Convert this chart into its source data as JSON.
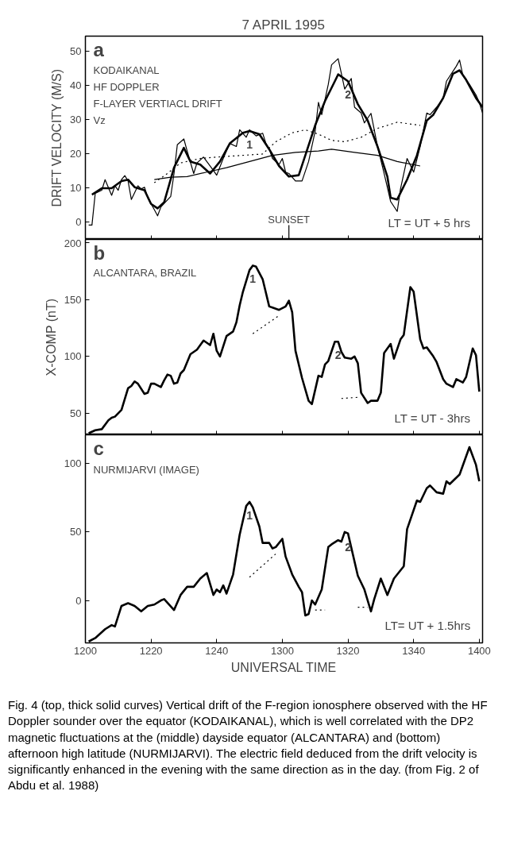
{
  "chart_data": [
    {
      "type": "line",
      "title": "7 APRIL 1995",
      "ylabel": "DRIFT VELOCITY (M/S)",
      "xlim": [
        "1995-04-07T12:00",
        "1995-04-07T14:01"
      ],
      "ylim": [
        -5.2,
        54.3
      ],
      "yticks": [
        0,
        10,
        20,
        30,
        40,
        50
      ],
      "xticks": [
        "1995-04-07T12:00",
        "1995-04-07T12:20",
        "1995-04-07T12:40",
        "1995-04-07T13:00",
        "1995-04-07T13:20",
        "1995-04-07T13:40",
        "1995-04-07T14:00"
      ],
      "tick_labels": "y",
      "grid": false,
      "marker": "none",
      "line_style": "solid",
      "series": [
        {
          "color": "#000000",
          "x": [
            "1995-04-07T12:02",
            "1995-04-07T12:05",
            "1995-04-07T12:08",
            "1995-04-07T12:11",
            "1995-04-07T12:13",
            "1995-04-07T12:15",
            "1995-04-07T12:18",
            "1995-04-07T12:20",
            "1995-04-07T12:22",
            "1995-04-07T12:24",
            "1995-04-07T12:27",
            "1995-04-07T12:30",
            "1995-04-07T12:32",
            "1995-04-07T12:35",
            "1995-04-07T12:38",
            "1995-04-07T12:41",
            "1995-04-07T12:44",
            "1995-04-07T12:48",
            "1995-04-07T12:50",
            "1995-04-07T12:53",
            "1995-04-07T12:56",
            "1995-04-07T12:59",
            "1995-04-07T13:02",
            "1995-04-07T13:05",
            "1995-04-07T13:07",
            "1995-04-07T13:10",
            "1995-04-07T13:13",
            "1995-04-07T13:16",
            "1995-04-07T13:17",
            "1995-04-07T13:20",
            "1995-04-07T13:23",
            "1995-04-07T13:26",
            "1995-04-07T13:29",
            "1995-04-07T13:32",
            "1995-04-07T13:33",
            "1995-04-07T13:35",
            "1995-04-07T13:38",
            "1995-04-07T13:41",
            "1995-04-07T13:44",
            "1995-04-07T13:46",
            "1995-04-07T13:49",
            "1995-04-07T13:52",
            "1995-04-07T13:54",
            "1995-04-07T13:56",
            "1995-04-07T13:59",
            "1995-04-07T14:01"
          ],
          "values": [
            7.9,
            9.8,
            9.8,
            11.9,
            12.3,
            10.1,
            9.2,
            5.2,
            3.9,
            5.7,
            15.8,
            21.6,
            17.6,
            16.7,
            14.1,
            17.6,
            22.9,
            26.0,
            26.5,
            25.6,
            21.2,
            16.3,
            13.2,
            13.6,
            19.4,
            28.2,
            35.3,
            41.1,
            43.1,
            41.1,
            34.4,
            29.6,
            22.0,
            13.2,
            7.0,
            6.5,
            12.3,
            19.4,
            29.6,
            31.3,
            36.2,
            43.3,
            44.3,
            41.5,
            36.2,
            33.5
          ]
        },
        {
          "color": "#000000",
          "x": [
            "1995-04-07T12:01",
            "1995-04-07T12:02",
            "1995-04-07T12:03",
            "1995-04-07T12:05",
            "1995-04-07T12:06",
            "1995-04-07T12:08",
            "1995-04-07T12:09",
            "1995-04-07T12:10",
            "1995-04-07T12:11",
            "1995-04-07T12:12",
            "1995-04-07T12:13",
            "1995-04-07T12:14",
            "1995-04-07T12:16",
            "1995-04-07T12:17",
            "1995-04-07T12:18",
            "1995-04-07T12:19",
            "1995-04-07T12:21",
            "1995-04-07T12:22",
            "1995-04-07T12:23",
            "1995-04-07T12:26",
            "1995-04-07T12:27",
            "1995-04-07T12:28",
            "1995-04-07T12:30",
            "1995-04-07T12:31",
            "1995-04-07T12:33",
            "1995-04-07T12:34",
            "1995-04-07T12:36",
            "1995-04-07T12:39",
            "1995-04-07T12:40",
            "1995-04-07T12:42",
            "1995-04-07T12:44",
            "1995-04-07T12:46",
            "1995-04-07T12:47",
            "1995-04-07T12:49",
            "1995-04-07T12:50",
            "1995-04-07T12:52",
            "1995-04-07T12:54",
            "1995-04-07T12:55",
            "1995-04-07T12:56",
            "1995-04-07T12:57",
            "1995-04-07T12:59",
            "1995-04-07T13:00",
            "1995-04-07T13:01",
            "1995-04-07T13:02",
            "1995-04-07T13:04",
            "1995-04-07T13:06",
            "1995-04-07T13:08",
            "1995-04-07T13:10",
            "1995-04-07T13:11",
            "1995-04-07T13:12",
            "1995-04-07T13:14",
            "1995-04-07T13:15",
            "1995-04-07T13:17",
            "1995-04-07T13:18",
            "1995-04-07T13:19",
            "1995-04-07T13:21",
            "1995-04-07T13:22",
            "1995-04-07T13:24",
            "1995-04-07T13:25",
            "1995-04-07T13:27",
            "1995-04-07T13:29",
            "1995-04-07T13:31",
            "1995-04-07T13:33",
            "1995-04-07T13:35",
            "1995-04-07T13:36",
            "1995-04-07T13:38",
            "1995-04-07T13:40",
            "1995-04-07T13:42",
            "1995-04-07T13:44",
            "1995-04-07T13:45",
            "1995-04-07T13:47",
            "1995-04-07T13:49",
            "1995-04-07T13:50",
            "1995-04-07T13:53",
            "1995-04-07T13:54",
            "1995-04-07T13:55",
            "1995-04-07T13:57",
            "1995-04-07T13:59",
            "1995-04-07T14:00",
            "1995-04-07T14:01"
          ],
          "values": [
            -1.0,
            -1.0,
            8.3,
            9.2,
            12.3,
            7.7,
            10.5,
            9.2,
            12.3,
            13.5,
            11.9,
            6.5,
            10.5,
            9.6,
            10.1,
            7.0,
            3.5,
            1.7,
            4.3,
            7.4,
            14.1,
            22.5,
            24.2,
            20.7,
            14.1,
            17.2,
            18.9,
            15.0,
            13.6,
            18.5,
            22.9,
            22.0,
            26.9,
            24.7,
            26.9,
            25.1,
            25.9,
            22.9,
            21.2,
            18.5,
            16.7,
            18.5,
            14.5,
            14.1,
            11.9,
            11.9,
            17.6,
            26.5,
            34.9,
            31.3,
            40.2,
            45.9,
            47.7,
            43.3,
            38.8,
            41.9,
            33.5,
            31.8,
            28.9,
            31.7,
            22.0,
            14.1,
            5.9,
            3.0,
            9.6,
            18.5,
            14.5,
            22.0,
            31.8,
            31.3,
            33.5,
            36.2,
            41.1,
            45.5,
            47.3,
            42.8,
            40.2,
            37.1,
            34.9,
            31.8
          ]
        },
        {
          "color": "#000000",
          "line_style": "dotted",
          "x": [
            "1995-04-07T12:21",
            "1995-04-07T12:25",
            "1995-04-07T12:29",
            "1995-04-07T12:35",
            "1995-04-07T12:40",
            "1995-04-07T12:54",
            "1995-04-07T12:58",
            "1995-04-07T13:03",
            "1995-04-07T13:07",
            "1995-04-07T13:11",
            "1995-04-07T13:15",
            "1995-04-07T13:19",
            "1995-04-07T13:24",
            "1995-04-07T13:29",
            "1995-04-07T13:35",
            "1995-04-07T13:42"
          ],
          "values": [
            11.4,
            14.1,
            17.2,
            18.5,
            18.9,
            19.8,
            23.4,
            26.0,
            26.9,
            25.6,
            23.8,
            23.4,
            24.7,
            27.3,
            29.1,
            28.2
          ]
        },
        {
          "color": "#000000",
          "x": [
            "1995-04-07T12:21",
            "1995-04-07T12:26",
            "1995-04-07T12:31",
            "1995-04-07T12:37",
            "1995-04-07T12:43",
            "1995-04-07T12:50",
            "1995-04-07T12:57",
            "1995-04-07T13:04",
            "1995-04-07T13:11",
            "1995-04-07T13:15",
            "1995-04-07T13:22",
            "1995-04-07T13:29",
            "1995-04-07T13:35",
            "1995-04-07T13:42"
          ],
          "values": [
            12.3,
            13.0,
            13.2,
            14.5,
            15.8,
            17.6,
            19.4,
            20.3,
            20.7,
            21.2,
            20.3,
            19.4,
            17.6,
            16.3
          ]
        }
      ],
      "ref_lines": [
        {
          "axis": "x",
          "value": "1995-04-07T13:02",
          "label": "SUNSET"
        }
      ],
      "annotations": [
        "a",
        "KODAIKANAL",
        "HF DOPPLER",
        "F-LAYER VERTIACL DRIFT",
        "Vz",
        "LT = UT + 5 hrs",
        {
          "text": "1",
          "x": "1995-04-07T12:50",
          "y": 26.5
        },
        {
          "text": "2",
          "x": "1995-04-07T13:20",
          "y": 41.1
        }
      ]
    },
    {
      "type": "line",
      "ylabel": "X-COMP (nT)",
      "xlim": [
        "1995-04-07T12:00",
        "1995-04-07T14:01"
      ],
      "ylim": [
        31,
        203
      ],
      "yticks": [
        50,
        100,
        150,
        200
      ],
      "xticks": [
        "1995-04-07T12:00",
        "1995-04-07T12:20",
        "1995-04-07T12:40",
        "1995-04-07T13:00",
        "1995-04-07T13:20",
        "1995-04-07T13:40",
        "1995-04-07T14:00"
      ],
      "tick_labels": "y",
      "grid": false,
      "marker": "none",
      "line_style": "solid",
      "series": [
        {
          "color": "#000000",
          "x": [
            "1995-04-07T12:01",
            "1995-04-07T12:03",
            "1995-04-07T12:05",
            "1995-04-07T12:07",
            "1995-04-07T12:08",
            "1995-04-07T12:09",
            "1995-04-07T12:11",
            "1995-04-07T12:13",
            "1995-04-07T12:14",
            "1995-04-07T12:15",
            "1995-04-07T12:16",
            "1995-04-07T12:18",
            "1995-04-07T12:19",
            "1995-04-07T12:20",
            "1995-04-07T12:21",
            "1995-04-07T12:23",
            "1995-04-07T12:24",
            "1995-04-07T12:25",
            "1995-04-07T12:26",
            "1995-04-07T12:27",
            "1995-04-07T12:28",
            "1995-04-07T12:29",
            "1995-04-07T12:30",
            "1995-04-07T12:32",
            "1995-04-07T12:34",
            "1995-04-07T12:36",
            "1995-04-07T12:38",
            "1995-04-07T12:39",
            "1995-04-07T12:40",
            "1995-04-07T12:41",
            "1995-04-07T12:43",
            "1995-04-07T12:45",
            "1995-04-07T12:46",
            "1995-04-07T12:47",
            "1995-04-07T12:48",
            "1995-04-07T12:50",
            "1995-04-07T12:51",
            "1995-04-07T12:52",
            "1995-04-07T12:54",
            "1995-04-07T12:56",
            "1995-04-07T12:57",
            "1995-04-07T12:59",
            "1995-04-07T13:01",
            "1995-04-07T13:02",
            "1995-04-07T13:03",
            "1995-04-07T13:04",
            "1995-04-07T13:06",
            "1995-04-07T13:08",
            "1995-04-07T13:09",
            "1995-04-07T13:11",
            "1995-04-07T13:12",
            "1995-04-07T13:13",
            "1995-04-07T13:14",
            "1995-04-07T13:16",
            "1995-04-07T13:17",
            "1995-04-07T13:18",
            "1995-04-07T13:19",
            "1995-04-07T13:21",
            "1995-04-07T13:22",
            "1995-04-07T13:23",
            "1995-04-07T13:24",
            "1995-04-07T13:26",
            "1995-04-07T13:27",
            "1995-04-07T13:29",
            "1995-04-07T13:30",
            "1995-04-07T13:31",
            "1995-04-07T13:33",
            "1995-04-07T13:34",
            "1995-04-07T13:36",
            "1995-04-07T13:37",
            "1995-04-07T13:39",
            "1995-04-07T13:40",
            "1995-04-07T13:42",
            "1995-04-07T13:43",
            "1995-04-07T13:44",
            "1995-04-07T13:46",
            "1995-04-07T13:47",
            "1995-04-07T13:49",
            "1995-04-07T13:50",
            "1995-04-07T13:52",
            "1995-04-07T13:53",
            "1995-04-07T13:55",
            "1995-04-07T13:56",
            "1995-04-07T13:58",
            "1995-04-07T13:59",
            "1995-04-07T14:00"
          ],
          "values": [
            32.4,
            35,
            36,
            43.7,
            46,
            47,
            53,
            72,
            74,
            78,
            76,
            67,
            68,
            76,
            76,
            73,
            79,
            84,
            83,
            76,
            77,
            85,
            88,
            102,
            106,
            114,
            110,
            120,
            105,
            100,
            118,
            122,
            130,
            145,
            157,
            176,
            180,
            179,
            168,
            144,
            143,
            141,
            144,
            149,
            139,
            105,
            81,
            61,
            58,
            83,
            82,
            93,
            96,
            113,
            113,
            104,
            99,
            98,
            100,
            94,
            68,
            59,
            61,
            61,
            68,
            103,
            111,
            98,
            115,
            119,
            161,
            157,
            115,
            107,
            108,
            100,
            95,
            80,
            76,
            73,
            80,
            77,
            82,
            107,
            101,
            69
          ]
        },
        {
          "color": "#000000",
          "line_style": "dotted",
          "x": [
            "1995-04-07T12:51",
            "1995-04-07T12:59",
            null,
            "1995-04-07T13:18",
            "1995-04-07T13:23"
          ],
          "values": [
            120,
            136,
            null,
            63,
            64
          ]
        }
      ],
      "annotations": [
        "b",
        "ALCANTARA, BRAZIL",
        "LT = UT - 3hrs",
        {
          "text": "1",
          "x": "1995-04-07T12:51",
          "y": 180
        },
        {
          "text": "2",
          "x": "1995-04-07T13:17",
          "y": 113
        }
      ]
    },
    {
      "type": "line",
      "xlabel": "UNIVERSAL TIME",
      "xlim": [
        "1995-04-07T12:00",
        "1995-04-07T14:01"
      ],
      "ylim": [
        -31,
        121
      ],
      "yticks": [
        0,
        50,
        100
      ],
      "xticks": [
        {
          "value": "1995-04-07T12:00",
          "label": "1200"
        },
        {
          "value": "1995-04-07T12:20",
          "label": "1220"
        },
        {
          "value": "1995-04-07T12:40",
          "label": "1240"
        },
        {
          "value": "1995-04-07T13:00",
          "label": "1300"
        },
        {
          "value": "1995-04-07T13:20",
          "label": "1320"
        },
        {
          "value": "1995-04-07T13:40",
          "label": "1340"
        },
        {
          "value": "1995-04-07T14:00",
          "label": "1400"
        }
      ],
      "grid": false,
      "marker": "none",
      "line_style": "solid",
      "series": [
        {
          "color": "#000000",
          "x": [
            "1995-04-07T12:01",
            "1995-04-07T12:03",
            "1995-04-07T12:06",
            "1995-04-07T12:08",
            "1995-04-07T12:09",
            "1995-04-07T12:11",
            "1995-04-07T12:13",
            "1995-04-07T12:15",
            "1995-04-07T12:17",
            "1995-04-07T12:19",
            "1995-04-07T12:21",
            "1995-04-07T12:23",
            "1995-04-07T12:24",
            "1995-04-07T12:27",
            "1995-04-07T12:29",
            "1995-04-07T12:31",
            "1995-04-07T12:33",
            "1995-04-07T12:35",
            "1995-04-07T12:37",
            "1995-04-07T12:39",
            "1995-04-07T12:40",
            "1995-04-07T12:41",
            "1995-04-07T12:42",
            "1995-04-07T12:43",
            "1995-04-07T12:45",
            "1995-04-07T12:47",
            "1995-04-07T12:49",
            "1995-04-07T12:50",
            "1995-04-07T12:51",
            "1995-04-07T12:53",
            "1995-04-07T12:54",
            "1995-04-07T12:56",
            "1995-04-07T12:57",
            "1995-04-07T12:58",
            "1995-04-07T13:00",
            "1995-04-07T13:01",
            "1995-04-07T13:03",
            "1995-04-07T13:05",
            "1995-04-07T13:06",
            "1995-04-07T13:07",
            "1995-04-07T13:08",
            "1995-04-07T13:09",
            "1995-04-07T13:10",
            "1995-04-07T13:12",
            "1995-04-07T13:14",
            "1995-04-07T13:15",
            "1995-04-07T13:17",
            "1995-04-07T13:18",
            "1995-04-07T13:19",
            "1995-04-07T13:20",
            "1995-04-07T13:23",
            "1995-04-07T13:25",
            "1995-04-07T13:27",
            "1995-04-07T13:28",
            "1995-04-07T13:30",
            "1995-04-07T13:32",
            "1995-04-07T13:34",
            "1995-04-07T13:37",
            "1995-04-07T13:38",
            "1995-04-07T13:41",
            "1995-04-07T13:42",
            "1995-04-07T13:44",
            "1995-04-07T13:45",
            "1995-04-07T13:47",
            "1995-04-07T13:49",
            "1995-04-07T13:50",
            "1995-04-07T13:51",
            "1995-04-07T13:54",
            "1995-04-07T13:57",
            "1995-04-07T13:59",
            "1995-04-07T14:00"
          ],
          "values": [
            -30,
            -27.5,
            -21,
            -18,
            -19,
            -4,
            -2,
            -4,
            -8,
            -4,
            -3,
            0,
            1,
            -7,
            4,
            10,
            10,
            16,
            20,
            4,
            8,
            6,
            11,
            5,
            19,
            48,
            69,
            72,
            68,
            54,
            42,
            42,
            38,
            39,
            45,
            32,
            19,
            10,
            6,
            -11,
            -10,
            0,
            -3,
            8,
            39,
            41,
            44,
            43,
            50,
            49,
            18,
            8,
            -8,
            1,
            16,
            4,
            16,
            25,
            52,
            73,
            72,
            82,
            84,
            79,
            78,
            87,
            85,
            92,
            112,
            99,
            87
          ]
        },
        {
          "color": "#000000",
          "line_style": "dotted",
          "x": [
            "1995-04-07T12:50",
            "1995-04-07T12:58",
            null,
            "1995-04-07T13:10",
            "1995-04-07T13:13",
            null,
            "1995-04-07T13:23",
            "1995-04-07T13:26"
          ],
          "values": [
            17,
            34,
            null,
            -7,
            -7,
            null,
            -5,
            -5
          ]
        }
      ],
      "annotations": [
        "c",
        "NURMIJARVI (IMAGE)",
        "LT= UT + 1.5hrs",
        {
          "text": "1",
          "x": "1995-04-07T12:50",
          "y": 72
        },
        {
          "text": "2",
          "x": "1995-04-07T13:20",
          "y": 49
        }
      ]
    },
    {
      "type": "other",
      "annotations": [
        "Fig. 4 (top, thick solid curves) Vertical drift of the F-region ionosphere observed with the HF Doppler sounder over the equator (KODAIKANAL), which is well correlated with the DP2 magnetic fluctuations at the (middle) dayside equator (ALCANTARA) and (bottom) afternoon high latitude (NURMIJARVI). The electric field deduced from the drift velocity is significantly enhanced in the evening with the same direction as in the day. (from Fig. 2 of Abdu et al. 1988)"
      ]
    }
  ]
}
